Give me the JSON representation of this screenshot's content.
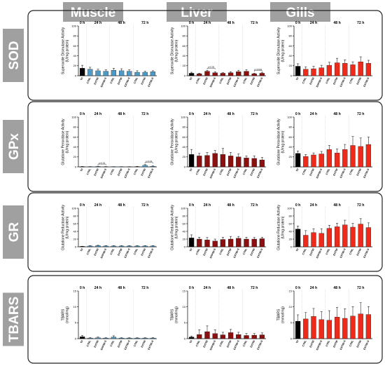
{
  "columns": [
    "Muscle",
    "Liver",
    "Gills"
  ],
  "rows": [
    "SOD",
    "GPx",
    "GR",
    "TBARS"
  ],
  "colors": {
    "Muscle": "#4e9ac7",
    "Liver": "#8b1010",
    "Gills": "#ee2a1a",
    "control": "#000000",
    "header_bg": "#a0a0a0"
  },
  "time_labels": [
    "0 h",
    "24 h",
    "48 h",
    "72 h"
  ],
  "chart_data": [
    {
      "type": "bar",
      "row": "SOD",
      "column": "Muscle",
      "ylabel": "Superoxide Dismutase Activity (U/mg protein)",
      "ylim": [
        0,
        100
      ],
      "yticks": [
        0,
        20,
        40,
        60,
        80,
        100
      ],
      "categories": [
        "T0",
        "CTRL",
        "EXT50",
        "EXPS0-S",
        "CTRL",
        "EXT50",
        "EXT50-S",
        "CTRL",
        "EXT50",
        "EXT50-S"
      ],
      "values": [
        15,
        13,
        10,
        9,
        11,
        10,
        9,
        7,
        7,
        8
      ],
      "errors": [
        6,
        4,
        3,
        3,
        4,
        4,
        3,
        3,
        2,
        2
      ],
      "annotations": []
    },
    {
      "type": "bar",
      "row": "SOD",
      "column": "Liver",
      "ylabel": "Superoxide Dismutase Activity (U/mg protein)",
      "ylim": [
        0,
        100
      ],
      "yticks": [
        0,
        20,
        40,
        60,
        80,
        100
      ],
      "categories": [
        "T0",
        "CTRL",
        "EXT50",
        "EXPS0-S",
        "CTRL",
        "EXT50",
        "EXT50-S",
        "CTRL",
        "EXT50",
        "EXT50-S"
      ],
      "values": [
        5,
        4,
        9,
        6,
        5,
        6,
        8,
        9,
        4,
        5
      ],
      "errors": [
        2,
        1,
        2,
        2,
        1,
        2,
        3,
        3,
        1,
        1
      ],
      "annotations": [
        "p<0.05",
        "p<0.001"
      ]
    },
    {
      "type": "bar",
      "row": "SOD",
      "column": "Gills",
      "ylabel": "Superoxide Dismutase Activity (U/mg protein)",
      "ylim": [
        0,
        100
      ],
      "yticks": [
        0,
        20,
        40,
        60,
        80,
        100
      ],
      "categories": [
        "T0",
        "CTRL",
        "EXT50",
        "EXPS0-S",
        "CTRL",
        "EXT50",
        "EXT50-S",
        "CTRL",
        "EXT50",
        "EXT50-S"
      ],
      "values": [
        19,
        13,
        14,
        16,
        21,
        26,
        25,
        22,
        28,
        25
      ],
      "errors": [
        5,
        5,
        5,
        5,
        6,
        9,
        7,
        6,
        10,
        6
      ],
      "annotations": []
    },
    {
      "type": "bar",
      "row": "GPx",
      "column": "Muscle",
      "ylabel": "Glutatione Peroxidase Activity (U/mg protein)",
      "ylim": [
        0,
        100
      ],
      "yticks": [
        0,
        20,
        40,
        60,
        80,
        100
      ],
      "categories": [
        "T0",
        "CTRL",
        "EXT50",
        "EXPS0-S",
        "CTRL",
        "EXT50",
        "EXT50-S",
        "CTRL",
        "EXT50",
        "EXT50-S"
      ],
      "values": [
        0.5,
        0.3,
        0.8,
        0.4,
        0.3,
        0.3,
        0.3,
        0.6,
        3,
        1
      ],
      "errors": [
        0.3,
        0.3,
        0.5,
        0.3,
        0.2,
        0.2,
        0.2,
        0.5,
        1.5,
        1
      ],
      "annotations": [
        "p<0.01",
        "p<0.01"
      ]
    },
    {
      "type": "bar",
      "row": "GPx",
      "column": "Liver",
      "ylabel": "Glutatione Peroxidase Activity (U/mg protein)",
      "ylim": [
        0,
        100
      ],
      "yticks": [
        0,
        20,
        40,
        60,
        80,
        100
      ],
      "categories": [
        "T0",
        "CTRL",
        "EXT50",
        "EXPS0-S",
        "CTRL",
        "EXT50",
        "EXT50-S",
        "CTRL",
        "EXT50",
        "EXT50-S"
      ],
      "values": [
        25,
        22,
        23,
        27,
        25,
        22,
        20,
        18,
        17,
        14
      ],
      "errors": [
        10,
        5,
        6,
        6,
        12,
        7,
        6,
        4,
        5,
        5
      ],
      "annotations": []
    },
    {
      "type": "bar",
      "row": "GPx",
      "column": "Gills",
      "ylabel": "Glutatione Peroxidase Activity (U/mg protein)",
      "ylim": [
        0,
        100
      ],
      "yticks": [
        0,
        20,
        40,
        60,
        80,
        100
      ],
      "categories": [
        "T0",
        "CTRL",
        "EXT50",
        "EXPS0-S",
        "CTRL",
        "EXT50",
        "EXT50-S",
        "CTRL",
        "EXT50",
        "EXT50-S"
      ],
      "values": [
        27,
        21,
        24,
        26,
        35,
        28,
        35,
        43,
        41,
        45
      ],
      "errors": [
        5,
        4,
        4,
        5,
        8,
        8,
        10,
        18,
        17,
        15
      ],
      "annotations": []
    },
    {
      "type": "bar",
      "row": "GR",
      "column": "Muscle",
      "ylabel": "Glutatione Reductase Activity (U/mg protein)",
      "ylim": [
        0,
        100
      ],
      "yticks": [
        0,
        20,
        40,
        60,
        80,
        100
      ],
      "categories": [
        "T0",
        "CTRL",
        "EXT50",
        "EXPS0-S",
        "CTRL",
        "EXT50",
        "EXT50-S",
        "CTRL",
        "EXT50",
        "EXT50-S"
      ],
      "values": [
        1,
        2,
        3,
        2,
        2,
        2,
        2,
        2,
        2,
        2
      ],
      "errors": [
        0.5,
        1,
        1,
        1,
        1,
        1,
        1,
        1,
        1,
        1
      ],
      "annotations": []
    },
    {
      "type": "bar",
      "row": "GR",
      "column": "Liver",
      "ylabel": "Glutatione Reductase Activity (U/mg protein)",
      "ylim": [
        0,
        100
      ],
      "yticks": [
        0,
        20,
        40,
        60,
        80,
        100
      ],
      "categories": [
        "T0",
        "CTRL",
        "EXT50",
        "EXPS0-S",
        "CTRL",
        "EXT50",
        "EXT50-S",
        "CTRL",
        "EXT50",
        "EXT50-S"
      ],
      "values": [
        23,
        20,
        18,
        15,
        19,
        20,
        22,
        20,
        20,
        21
      ],
      "errors": [
        8,
        5,
        6,
        5,
        6,
        7,
        5,
        5,
        4,
        4
      ],
      "annotations": []
    },
    {
      "type": "bar",
      "row": "GR",
      "column": "Gills",
      "ylabel": "Glutatione Reductase Activity (U/mg protein)",
      "ylim": [
        0,
        100
      ],
      "yticks": [
        0,
        20,
        40,
        60,
        80,
        100
      ],
      "categories": [
        "T0",
        "CTRL",
        "EXT50",
        "EXPS0-S",
        "CTRL",
        "EXT50",
        "EXT50-S",
        "CTRL",
        "EXT50",
        "EXT50-S"
      ],
      "values": [
        46,
        30,
        37,
        35,
        48,
        52,
        57,
        51,
        59,
        50
      ],
      "errors": [
        8,
        12,
        10,
        12,
        8,
        9,
        12,
        10,
        14,
        12
      ],
      "annotations": []
    },
    {
      "type": "bar",
      "row": "TBARS",
      "column": "Muscle",
      "ylabel": "TBARS (mmol/mg)",
      "ylim": [
        0,
        15
      ],
      "yticks": [
        0,
        5,
        10,
        15
      ],
      "categories": [
        "T0",
        "CTRL",
        "EXT50",
        "EXPS0-S",
        "CTRL",
        "EXT50",
        "EXT50-S",
        "CTRL",
        "EXT50",
        "EXT50-S"
      ],
      "values": [
        0.6,
        0.2,
        0.3,
        0.2,
        0.5,
        0.2,
        0.2,
        0.2,
        0.2,
        0.2
      ],
      "errors": [
        0.4,
        0.1,
        0.2,
        0.1,
        0.4,
        0.1,
        0.1,
        0.1,
        0.1,
        0.1
      ],
      "annotations": []
    },
    {
      "type": "bar",
      "row": "TBARS",
      "column": "Liver",
      "ylabel": "TBARS (mmol/mg)",
      "ylim": [
        0,
        15
      ],
      "yticks": [
        0,
        5,
        10,
        15
      ],
      "categories": [
        "T0",
        "CTRL",
        "EXT50",
        "EXPS0-S",
        "CTRL",
        "EXT50",
        "EXT50-S",
        "CTRL",
        "EXT50",
        "EXT50-S"
      ],
      "values": [
        0.5,
        1.3,
        2.2,
        1.6,
        1.2,
        1.9,
        1.3,
        1.0,
        1.1,
        1.2
      ],
      "errors": [
        0.3,
        1.5,
        1.8,
        1.2,
        0.8,
        1.0,
        0.7,
        0.6,
        0.5,
        0.6
      ],
      "annotations": []
    },
    {
      "type": "bar",
      "row": "TBARS",
      "column": "Gills",
      "ylabel": "TBARS (mmol/mg)",
      "ylim": [
        0,
        15
      ],
      "yticks": [
        0,
        5,
        10,
        15
      ],
      "categories": [
        "T0",
        "CTRL",
        "EXT50",
        "EXPS0-S",
        "CTRL",
        "EXT50",
        "EXT50-S",
        "CTRL",
        "EXT50",
        "EXT50-S"
      ],
      "values": [
        5.5,
        6.2,
        7.0,
        6.0,
        5.8,
        6.8,
        6.4,
        7.1,
        7.8,
        7.6
      ],
      "errors": [
        2,
        2,
        2.5,
        2.5,
        3,
        3,
        3,
        3,
        3.5,
        2.5
      ],
      "annotations": []
    }
  ]
}
